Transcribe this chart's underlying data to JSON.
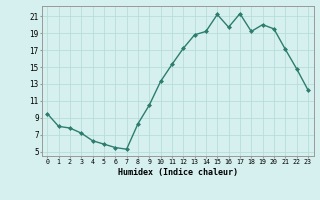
{
  "x": [
    0,
    1,
    2,
    3,
    4,
    5,
    6,
    7,
    8,
    9,
    10,
    11,
    12,
    13,
    14,
    15,
    16,
    17,
    18,
    19,
    20,
    21,
    22,
    23
  ],
  "y": [
    9.5,
    8.0,
    7.8,
    7.2,
    6.3,
    5.9,
    5.5,
    5.3,
    8.3,
    10.5,
    13.3,
    15.3,
    17.2,
    18.8,
    19.2,
    21.2,
    19.7,
    21.3,
    19.2,
    20.0,
    19.5,
    17.1,
    14.8,
    12.3
  ],
  "line_color": "#2d7d6f",
  "marker": "D",
  "marker_size": 2.0,
  "bg_color": "#d6f0ef",
  "grid_color": "#b8ddd9",
  "xlabel": "Humidex (Indice chaleur)",
  "ylabel_ticks": [
    5,
    7,
    9,
    11,
    13,
    15,
    17,
    19,
    21
  ],
  "xlim": [
    -0.5,
    23.5
  ],
  "ylim": [
    4.5,
    22.2
  ],
  "xlabel_fontsize": 6.0,
  "ytick_fontsize": 5.5,
  "xtick_fontsize": 4.8,
  "linewidth": 1.0
}
